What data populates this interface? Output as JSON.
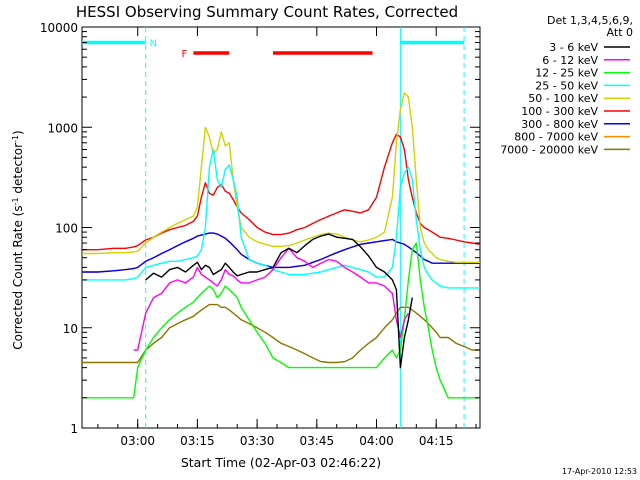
{
  "chart_data": {
    "type": "line",
    "title": "HESSI Observing Summary Count Rates, Corrected",
    "xlabel": "Start Time (02-Apr-03 02:46:22)",
    "ylabel_main": "Corrected Count Rate (s",
    "ylabel_sup1": "-1",
    "ylabel_mid": " detector",
    "ylabel_sup2": "-1",
    "ylabel_end": ")",
    "y_scale": "log",
    "ylim": [
      1,
      10000
    ],
    "xlim": [
      0,
      100
    ],
    "y_ticks": [
      {
        "label": "1",
        "value": 1
      },
      {
        "label": "10",
        "value": 10
      },
      {
        "label": "100",
        "value": 100
      },
      {
        "label": "1000",
        "value": 1000
      },
      {
        "label": "10000",
        "value": 10000
      }
    ],
    "x_ticks": [
      {
        "label": "03:00",
        "value": 14
      },
      {
        "label": "03:15",
        "value": 29
      },
      {
        "label": "03:30",
        "value": 44
      },
      {
        "label": "03:45",
        "value": 59
      },
      {
        "label": "04:00",
        "value": 74
      },
      {
        "label": "04:15",
        "value": 89
      }
    ],
    "x": [
      0,
      4,
      8,
      11,
      13,
      14,
      16,
      18,
      20,
      22,
      24,
      26,
      28,
      29,
      30,
      31,
      32,
      33,
      34,
      35,
      36,
      37,
      38,
      39,
      40,
      42,
      44,
      46,
      48,
      50,
      52,
      54,
      56,
      58,
      60,
      62,
      64,
      66,
      68,
      70,
      72,
      74,
      76,
      78,
      79,
      80,
      81,
      82,
      83,
      84,
      85,
      86,
      87,
      88,
      89,
      90,
      92,
      94,
      96,
      98,
      100
    ],
    "series": [
      {
        "name": "3 - 6 keV",
        "color": "#000000",
        "values": [
          null,
          null,
          null,
          null,
          null,
          null,
          30,
          35,
          32,
          38,
          40,
          36,
          42,
          45,
          38,
          42,
          40,
          34,
          36,
          38,
          44,
          40,
          36,
          33,
          34,
          36,
          36,
          38,
          40,
          56,
          62,
          56,
          66,
          76,
          82,
          86,
          80,
          78,
          76,
          64,
          52,
          40,
          36,
          30,
          24,
          4,
          8,
          12,
          20,
          null,
          null,
          null,
          null,
          null,
          null,
          null,
          null,
          null,
          null,
          null,
          null
        ]
      },
      {
        "name": "6 - 12 keV",
        "color": "#ff00ff",
        "values": [
          null,
          null,
          null,
          null,
          6,
          6,
          14,
          20,
          22,
          28,
          30,
          28,
          32,
          40,
          34,
          32,
          30,
          28,
          26,
          30,
          38,
          34,
          33,
          30,
          28,
          28,
          30,
          32,
          38,
          50,
          62,
          50,
          46,
          40,
          44,
          48,
          46,
          40,
          36,
          32,
          28,
          28,
          26,
          22,
          12,
          8,
          12,
          14,
          null,
          null,
          null,
          null,
          null,
          null,
          null,
          null,
          null,
          null,
          null,
          null,
          null
        ]
      },
      {
        "name": "12 - 25 keV",
        "color": "#00ff00",
        "values": [
          2,
          2,
          2,
          2,
          2,
          4,
          6,
          8,
          10,
          12,
          14,
          16,
          18,
          20,
          22,
          24,
          26,
          24,
          20,
          22,
          26,
          24,
          22,
          20,
          16,
          12,
          9,
          7,
          5,
          4.5,
          4,
          4,
          4,
          4,
          4,
          4,
          4,
          4,
          4,
          4,
          4,
          4,
          5,
          6,
          5,
          6,
          12,
          30,
          60,
          70,
          30,
          16,
          10,
          6,
          4,
          3,
          2,
          2,
          2,
          2,
          2
        ]
      },
      {
        "name": "25 - 50 keV",
        "color": "#00ffff",
        "values": [
          30,
          30,
          30,
          30,
          31,
          32,
          40,
          42,
          44,
          46,
          46,
          48,
          50,
          52,
          60,
          100,
          400,
          600,
          300,
          250,
          380,
          420,
          300,
          200,
          80,
          48,
          44,
          42,
          38,
          36,
          34,
          34,
          34,
          35,
          36,
          38,
          40,
          42,
          40,
          38,
          36,
          32,
          32,
          40,
          80,
          250,
          350,
          400,
          300,
          120,
          60,
          40,
          34,
          30,
          28,
          26,
          25,
          25,
          25,
          25,
          25
        ]
      },
      {
        "name": "50 - 100 keV",
        "color": "#d2d200",
        "values": [
          55,
          55,
          56,
          56,
          57,
          58,
          70,
          80,
          90,
          100,
          110,
          120,
          130,
          160,
          400,
          1000,
          800,
          550,
          600,
          900,
          650,
          700,
          300,
          160,
          100,
          80,
          72,
          68,
          65,
          65,
          66,
          70,
          75,
          80,
          85,
          88,
          86,
          80,
          75,
          72,
          75,
          80,
          90,
          200,
          700,
          1500,
          2200,
          2000,
          1000,
          300,
          100,
          70,
          60,
          55,
          50,
          48,
          46,
          45,
          45,
          45,
          45
        ]
      },
      {
        "name": "100 - 300 keV",
        "color": "#ff0000",
        "values": [
          60,
          60,
          62,
          62,
          64,
          66,
          75,
          80,
          88,
          95,
          100,
          105,
          115,
          130,
          200,
          280,
          220,
          210,
          250,
          270,
          230,
          220,
          190,
          160,
          140,
          120,
          100,
          90,
          85,
          85,
          88,
          95,
          100,
          110,
          120,
          130,
          140,
          150,
          145,
          140,
          150,
          200,
          400,
          700,
          850,
          800,
          600,
          300,
          200,
          140,
          110,
          100,
          95,
          90,
          85,
          80,
          78,
          75,
          72,
          70,
          68
        ]
      },
      {
        "name": "300 - 800 keV",
        "color": "#0000ff",
        "values": [
          36,
          36,
          37,
          38,
          39,
          40,
          46,
          50,
          55,
          60,
          66,
          72,
          78,
          82,
          84,
          86,
          88,
          88,
          86,
          82,
          78,
          72,
          66,
          60,
          54,
          48,
          44,
          42,
          40,
          40,
          40,
          41,
          42,
          45,
          48,
          52,
          56,
          60,
          64,
          68,
          70,
          72,
          74,
          76,
          72,
          70,
          68,
          64,
          60,
          56,
          52,
          48,
          46,
          44,
          44,
          44,
          44,
          44,
          44,
          44,
          44
        ]
      },
      {
        "name": "800 - 7000 keV",
        "color": "#ff8c00",
        "values": [
          36,
          36,
          37,
          38,
          39,
          40,
          46,
          50,
          55,
          60,
          66,
          72,
          78,
          82,
          84,
          86,
          88,
          88,
          86,
          82,
          78,
          72,
          66,
          60,
          54,
          48,
          44,
          42,
          40,
          40,
          40,
          41,
          42,
          45,
          48,
          52,
          56,
          60,
          64,
          68,
          70,
          72,
          74,
          76,
          72,
          70,
          68,
          64,
          60,
          56,
          52,
          48,
          46,
          44,
          44,
          44,
          44,
          44,
          44,
          44,
          44
        ]
      },
      {
        "name": "7000 - 20000 keV",
        "color": "#8b7500",
        "values": [
          4.5,
          4.5,
          4.5,
          4.5,
          4.5,
          4.5,
          6,
          7,
          8,
          10,
          11,
          12,
          13,
          14,
          15,
          16,
          17,
          17,
          17,
          16,
          16,
          15,
          14,
          13,
          12,
          11,
          10,
          9,
          8,
          7,
          6.5,
          6,
          5.5,
          5,
          4.6,
          4.5,
          4.5,
          4.6,
          5,
          6,
          7,
          8,
          10,
          12,
          14,
          16,
          16,
          16,
          15,
          14,
          13,
          12,
          11,
          10,
          9,
          8,
          8,
          7,
          6.5,
          6,
          6
        ]
      }
    ],
    "spacecraft_bars": [
      {
        "color": "#00ffff",
        "x0": 0,
        "x1": 16,
        "y": 7000
      },
      {
        "color": "#00ffff",
        "x0": 80,
        "x1": 96,
        "y": 7000
      },
      {
        "color": "#ff0000",
        "x0": 28,
        "x1": 37,
        "y": 5500
      },
      {
        "color": "#ff0000",
        "x0": 48,
        "x1": 73,
        "y": 5500
      }
    ],
    "vlines": [
      {
        "color": "#00ffff",
        "x": 16,
        "dashed": true
      },
      {
        "color": "#00ffff",
        "x": 80,
        "dashed": false
      },
      {
        "color": "#00ffff",
        "x": 96,
        "dashed": true
      }
    ],
    "annotations": [
      {
        "text": "N",
        "color": "#00ffff",
        "x": 17,
        "y": 7000
      },
      {
        "text": "F",
        "color": "#ff0000",
        "x": 25,
        "y": 5500
      }
    ]
  },
  "legend": {
    "header_line1": "Det 1,3,4,5,6,9,",
    "header_line2": "Att 0"
  },
  "footer_date": "17-Apr-2010 12:53"
}
